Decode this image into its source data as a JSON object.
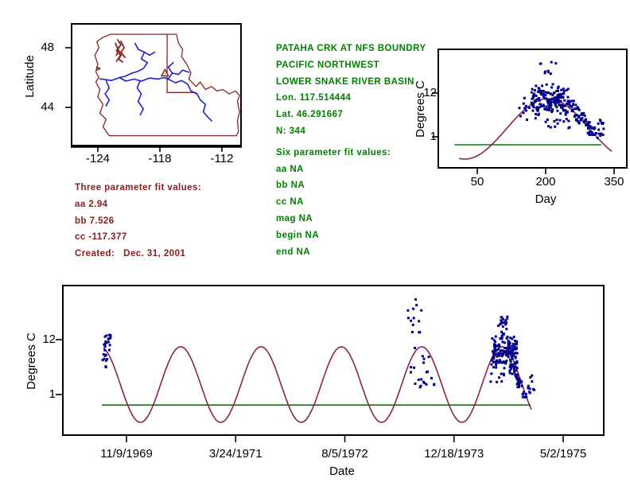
{
  "colors": {
    "points": "#00008B",
    "fit_curve": "#8B2252",
    "reference_line": "#008000",
    "map_outline": "#8B2323",
    "rivers": "#1F1FCD",
    "info_text": "#008000",
    "fit_text": "#8B1A1A",
    "axis": "#000000",
    "station_marker_fill": "#D8CCC4",
    "background": "#FFFFFF"
  },
  "station_block": {
    "lines": [
      "PATAHA CRK AT NFS BOUNDRY",
      "PACIFIC NORTHWEST",
      "LOWER SNAKE RIVER BASIN",
      "Lon. 117.514444",
      "Lat. 46.291667",
      "N: 344"
    ]
  },
  "six_param_block": {
    "title": "Six parameter fit values:",
    "lines": [
      "aa NA",
      "bb NA",
      "cc NA",
      "mag NA",
      "begin NA",
      "end NA"
    ]
  },
  "three_param_block": {
    "title": "Three parameter fit values:",
    "lines": [
      "aa 2.94",
      "bb 7.526",
      "cc -117.377"
    ],
    "created": "Created:   Dec. 31, 2001"
  },
  "chart_data": [
    {
      "type": "line",
      "name": "site-location-map",
      "ylabel": "Latitude",
      "x_ticks": [
        -124,
        -118,
        -112
      ],
      "y_ticks": [
        48,
        44
      ],
      "xlim": [
        -126.5,
        -110.2
      ],
      "ylim": [
        41.3,
        49.6
      ],
      "station": {
        "lon": -117.514444,
        "lat": 46.291667,
        "marker": "triangle"
      },
      "outline": [
        [
          -122.8,
          48.9
        ],
        [
          -116.4,
          48.9
        ],
        [
          -116.2,
          48.3
        ],
        [
          -115.8,
          47.9
        ],
        [
          -115.9,
          47.4
        ],
        [
          -115.4,
          46.9
        ],
        [
          -115.0,
          46.3
        ],
        [
          -115.2,
          45.9
        ],
        [
          -114.5,
          45.4
        ],
        [
          -114.1,
          45.7
        ],
        [
          -113.6,
          45.2
        ],
        [
          -113.0,
          45.4
        ],
        [
          -112.5,
          45.1
        ],
        [
          -111.9,
          45.2
        ],
        [
          -111.3,
          44.9
        ],
        [
          -110.7,
          45.1
        ],
        [
          -110.3,
          44.8
        ],
        [
          -110.5,
          44.4
        ],
        [
          -110.3,
          43.7
        ],
        [
          -110.5,
          43.1
        ],
        [
          -110.4,
          42.4
        ],
        [
          -110.6,
          42.1
        ],
        [
          -122.9,
          42.1
        ],
        [
          -123.5,
          42.7
        ],
        [
          -123.2,
          43.2
        ],
        [
          -123.8,
          43.6
        ],
        [
          -123.5,
          44.2
        ],
        [
          -124.0,
          44.7
        ],
        [
          -123.8,
          45.2
        ],
        [
          -124.2,
          45.7
        ],
        [
          -123.9,
          46.0
        ],
        [
          -124.2,
          46.4
        ],
        [
          -124.0,
          46.9
        ],
        [
          -124.3,
          47.5
        ],
        [
          -123.9,
          48.0
        ],
        [
          -124.1,
          48.4
        ],
        [
          -123.5,
          48.7
        ]
      ],
      "borders": [
        [
          [
            -117.3,
            48.9
          ],
          [
            -117.3,
            45.0
          ]
        ],
        [
          [
            -117.3,
            45.0
          ],
          [
            -114.5,
            45.0
          ]
        ]
      ],
      "coast_detail": [
        [
          [
            -122.08,
            48.53
          ],
          [
            -121.77,
            48.21
          ],
          [
            -122.08,
            47.89
          ],
          [
            -121.69,
            47.57
          ],
          [
            -122.0,
            47.25
          ],
          [
            -121.6,
            47.04
          ]
        ],
        [
          [
            -121.77,
            48.43
          ],
          [
            -121.46,
            48.0
          ],
          [
            -121.77,
            47.68
          ],
          [
            -121.38,
            47.36
          ]
        ],
        [
          [
            -122.3,
            48.3
          ],
          [
            -122.0,
            47.8
          ],
          [
            -122.2,
            47.5
          ]
        ],
        [
          [
            -121.9,
            48.1
          ],
          [
            -122.2,
            47.8
          ],
          [
            -121.8,
            47.5
          ],
          [
            -122.2,
            47.1
          ]
        ],
        [
          [
            -124.1,
            46.7
          ],
          [
            -123.8,
            46.6
          ],
          [
            -124.1,
            46.5
          ]
        ]
      ],
      "rivers": [
        [
          [
            -120.4,
            48.3
          ],
          [
            -120.1,
            47.9
          ],
          [
            -119.5,
            47.7
          ],
          [
            -119.8,
            47.25
          ],
          [
            -119.2,
            47.0
          ],
          [
            -119.6,
            46.6
          ],
          [
            -120.2,
            46.4
          ],
          [
            -120.7,
            46.3
          ],
          [
            -121.3,
            46.1
          ],
          [
            -121.9,
            46.0
          ]
        ],
        [
          [
            -119.5,
            47.7
          ],
          [
            -119.0,
            47.5
          ],
          [
            -118.5,
            47.7
          ]
        ],
        [
          [
            -121.9,
            46.0
          ],
          [
            -122.7,
            45.8
          ],
          [
            -123.5,
            45.9
          ],
          [
            -123.8,
            45.9
          ]
        ],
        [
          [
            -121.9,
            46.0
          ],
          [
            -121.3,
            45.76
          ],
          [
            -120.5,
            45.9
          ],
          [
            -119.8,
            45.76
          ],
          [
            -119.0,
            45.97
          ],
          [
            -118.2,
            45.9
          ],
          [
            -117.6,
            46.0
          ],
          [
            -117.2,
            45.9
          ]
        ],
        [
          [
            -117.2,
            45.9
          ],
          [
            -116.5,
            45.65
          ],
          [
            -115.9,
            45.8
          ],
          [
            -115.3,
            45.55
          ],
          [
            -115.0,
            45.1
          ],
          [
            -114.4,
            44.9
          ],
          [
            -114.1,
            44.5
          ],
          [
            -113.6,
            44.2
          ],
          [
            -113.8,
            43.7
          ],
          [
            -113.3,
            43.3
          ],
          [
            -113.0,
            43.1
          ]
        ],
        [
          [
            -117.2,
            45.9
          ],
          [
            -116.8,
            46.3
          ],
          [
            -116.2,
            46.2
          ],
          [
            -115.8,
            46.5
          ],
          [
            -115.2,
            46.35
          ]
        ],
        [
          [
            -116.8,
            46.3
          ],
          [
            -117.2,
            46.7
          ],
          [
            -116.7,
            47.0
          ]
        ],
        [
          [
            -123.2,
            45.8
          ],
          [
            -122.9,
            45.3
          ],
          [
            -123.3,
            44.9
          ],
          [
            -122.9,
            44.5
          ],
          [
            -123.2,
            44.1
          ]
        ],
        [
          [
            -119.9,
            45.8
          ],
          [
            -120.2,
            45.3
          ],
          [
            -119.8,
            44.9
          ],
          [
            -120.1,
            44.4
          ],
          [
            -119.6,
            43.9
          ],
          [
            -119.9,
            43.5
          ]
        ]
      ]
    },
    {
      "type": "scatter",
      "name": "seasonal-temperature-fit",
      "xlabel": "Day",
      "ylabel": "Degrees C",
      "x_ticks": [
        50,
        200,
        350
      ],
      "y_ticks": [
        12,
        1
      ],
      "xlim": [
        -35,
        378
      ],
      "ylim": [
        -6.8,
        23.0
      ],
      "n": 344,
      "fit_curve": {
        "mean": 3.0,
        "amplitude": 7.6,
        "period": 365,
        "peak_x": 205,
        "x_start": 10,
        "x_end": 345
      },
      "reference_line": {
        "value": -1.0,
        "x_start": 0,
        "x_end": 322
      },
      "points_clusters": [
        {
          "n": 10,
          "x": [
            140,
            168
          ],
          "y": [
            4.0,
            12.0
          ],
          "dist": "uniform"
        },
        {
          "n": 9,
          "x": [
            185,
            235
          ],
          "y": [
            15.5,
            20.3
          ],
          "dist": "uniform"
        },
        {
          "n": 160,
          "x": [
            168,
            250
          ],
          "y": [
            5.5,
            14.5
          ],
          "dist": "core"
        },
        {
          "n": 14,
          "x": [
            200,
            255
          ],
          "y": [
            3.0,
            5.5
          ],
          "dist": "uniform"
        },
        {
          "n": 80,
          "x": [
            248,
            308
          ],
          "y": [
            1.5,
            10.0
          ],
          "dist": "desc"
        },
        {
          "n": 18,
          "x": [
            305,
            327
          ],
          "y": [
            0.5,
            5.5
          ],
          "dist": "uniform"
        }
      ]
    },
    {
      "type": "scatter",
      "name": "time-series-temperature-fit",
      "xlabel": "Date",
      "ylabel": "Degrees C",
      "x_tick_labels": [
        "11/9/1969",
        "3/24/1971",
        "8/5/1972",
        "12/18/1973",
        "5/2/1975"
      ],
      "x_ticks_days": [
        0,
        500,
        1000,
        1500,
        2000
      ],
      "y_ticks": [
        12,
        1
      ],
      "xlim": [
        -291,
        2185
      ],
      "ylim": [
        -8.1,
        22.8
      ],
      "n": 344,
      "fit_curve": {
        "mean": 3.0,
        "amplitude": 7.6,
        "period": 368,
        "peak_x": 1352,
        "x_start": -106,
        "x_end": 1854
      },
      "reference_line": {
        "value": -1.1,
        "x_start": -113,
        "x_end": 1851
      },
      "points_clusters": [
        {
          "n": 26,
          "x": [
            -113,
            -72
          ],
          "y": [
            6.5,
            13.6
          ],
          "dist": "uniform"
        },
        {
          "n": 14,
          "x": [
            1288,
            1352
          ],
          "y": [
            9.0,
            20.3
          ],
          "dist": "uniform"
        },
        {
          "n": 20,
          "x": [
            1300,
            1420
          ],
          "y": [
            1.0,
            9.0
          ],
          "dist": "uniform"
        },
        {
          "n": 25,
          "x": [
            1700,
            1745
          ],
          "y": [
            12.5,
            16.6
          ],
          "dist": "uniform"
        },
        {
          "n": 150,
          "x": [
            1672,
            1790
          ],
          "y": [
            6.0,
            13.0
          ],
          "dist": "core"
        },
        {
          "n": 8,
          "x": [
            1665,
            1730
          ],
          "y": [
            3.0,
            6.0
          ],
          "dist": "uniform"
        },
        {
          "n": 45,
          "x": [
            1755,
            1832
          ],
          "y": [
            0.5,
            7.0
          ],
          "dist": "desc"
        },
        {
          "n": 10,
          "x": [
            1836,
            1868
          ],
          "y": [
            1.3,
            6.0
          ],
          "dist": "uniform"
        }
      ]
    }
  ]
}
